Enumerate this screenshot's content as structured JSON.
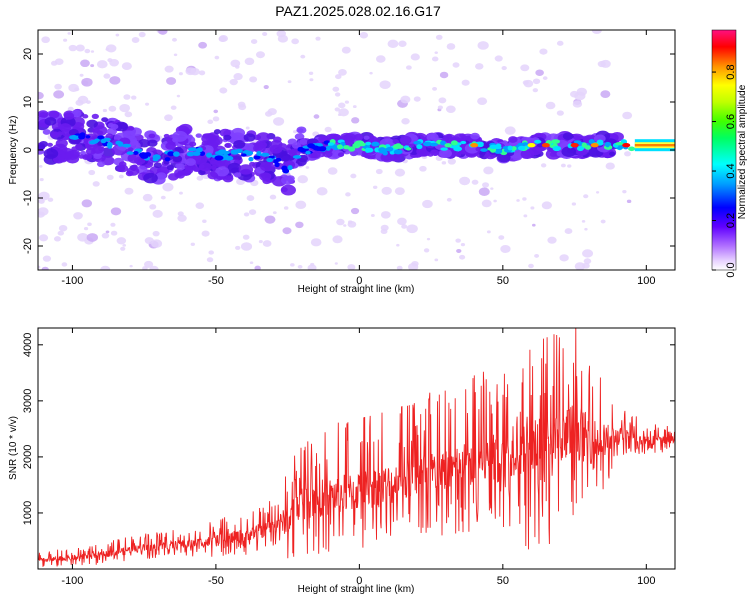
{
  "title": "PAZ1.2025.028.02.16.G17",
  "spectrogram": {
    "type": "heatmap",
    "xlabel": "Height of straight line (km)",
    "ylabel": "Frequency (Hz)",
    "xlim": [
      -112,
      110
    ],
    "ylim": [
      -25,
      25
    ],
    "x_ticks": [
      -100,
      -50,
      0,
      50,
      100
    ],
    "y_ticks": [
      -20,
      -10,
      0,
      10,
      20
    ],
    "colorbar": {
      "label": "Normalized spectral amplitude",
      "range": [
        0,
        0.97
      ],
      "ticks": [
        0.0,
        0.2,
        0.4,
        0.6,
        0.8
      ]
    },
    "ridge": [
      [
        -110,
        3
      ],
      [
        -100,
        3
      ],
      [
        -90,
        2
      ],
      [
        -80,
        0
      ],
      [
        -70,
        -2
      ],
      [
        -60,
        0
      ],
      [
        -50,
        -1
      ],
      [
        -40,
        -1
      ],
      [
        -30,
        -2
      ],
      [
        -25,
        -4
      ],
      [
        -20,
        0
      ],
      [
        -10,
        1
      ],
      [
        0,
        1
      ],
      [
        10,
        0
      ],
      [
        20,
        1
      ],
      [
        30,
        1
      ],
      [
        40,
        1
      ],
      [
        50,
        0
      ],
      [
        60,
        1
      ],
      [
        70,
        1
      ],
      [
        80,
        1
      ],
      [
        90,
        1
      ],
      [
        100,
        1
      ],
      [
        110,
        1
      ]
    ]
  },
  "snr": {
    "type": "line",
    "xlabel": "Height of straight line (km)",
    "ylabel": "SNR (10 * v/v)",
    "xlim": [
      -112,
      110
    ],
    "ylim": [
      0,
      4300
    ],
    "x_ticks": [
      -100,
      -50,
      0,
      50,
      100
    ],
    "y_ticks": [
      1000,
      2000,
      3000,
      4000
    ],
    "color": "#ee2222",
    "envelope": [
      [
        -112,
        150
      ],
      [
        -100,
        200
      ],
      [
        -90,
        250
      ],
      [
        -80,
        350
      ],
      [
        -70,
        400
      ],
      [
        -60,
        450
      ],
      [
        -50,
        500
      ],
      [
        -40,
        600
      ],
      [
        -30,
        750
      ],
      [
        -24,
        900
      ],
      [
        -20,
        1200
      ],
      [
        -10,
        1300
      ],
      [
        0,
        1400
      ],
      [
        10,
        1500
      ],
      [
        20,
        1650
      ],
      [
        30,
        1800
      ],
      [
        40,
        1900
      ],
      [
        50,
        2000
      ],
      [
        55,
        2300
      ],
      [
        60,
        2100
      ],
      [
        70,
        2200
      ],
      [
        75,
        2500
      ],
      [
        80,
        2300
      ],
      [
        85,
        2300
      ],
      [
        93,
        2400
      ],
      [
        100,
        2300
      ],
      [
        110,
        2300
      ]
    ],
    "spike_amplitude": [
      [
        -112,
        100
      ],
      [
        -60,
        200
      ],
      [
        -30,
        350
      ],
      [
        -24,
        700
      ],
      [
        -20,
        800
      ],
      [
        0,
        900
      ],
      [
        30,
        1000
      ],
      [
        50,
        1100
      ],
      [
        55,
        1500
      ],
      [
        70,
        1500
      ],
      [
        80,
        1100
      ],
      [
        92,
        300
      ],
      [
        110,
        150
      ]
    ]
  }
}
